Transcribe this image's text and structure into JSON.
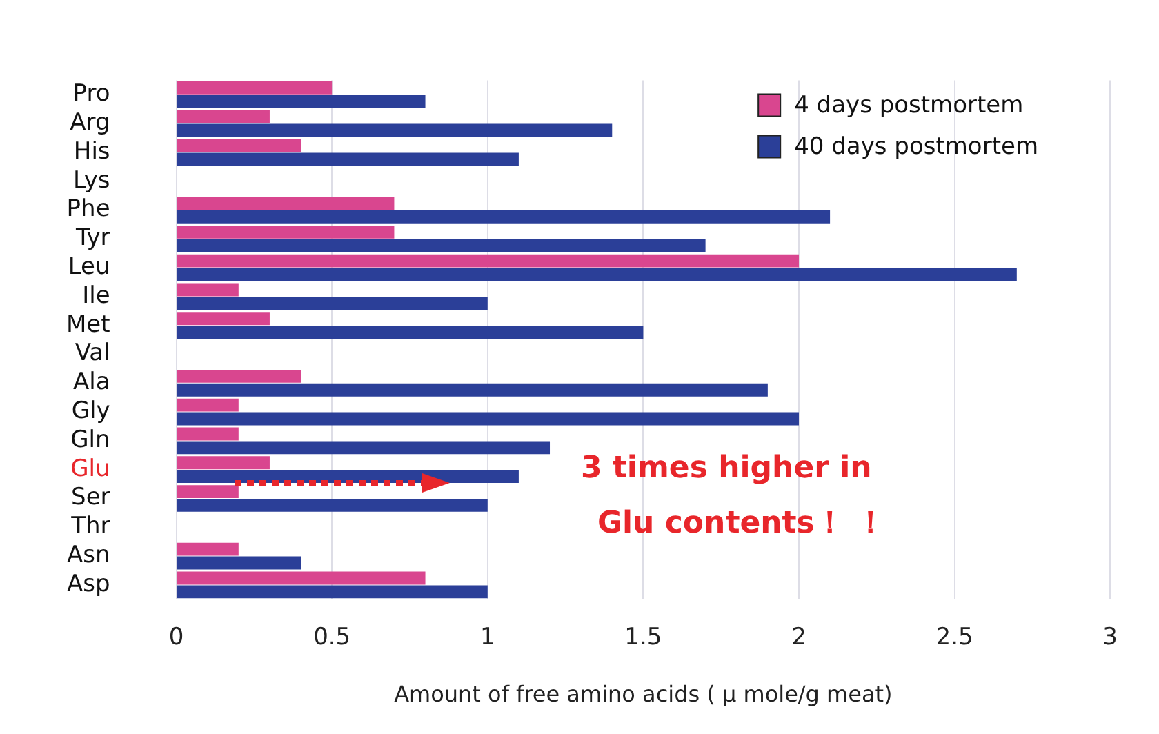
{
  "chart_data": {
    "type": "bar",
    "orientation": "horizontal",
    "xlabel": "Amount of free amino acids ( μ mole/g meat)",
    "categories": [
      "Pro",
      "Arg",
      "His",
      "Lys",
      "Phe",
      "Tyr",
      "Leu",
      "Ile",
      "Met",
      "Val",
      "Ala",
      "Gly",
      "Gln",
      "Glu",
      "Ser",
      "Thr",
      "Asn",
      "Asp"
    ],
    "series": [
      {
        "name": "4 days postmortem",
        "color": "#d9468f",
        "values": [
          0.5,
          0.3,
          0.4,
          null,
          0.7,
          0.7,
          2.0,
          0.2,
          0.3,
          null,
          0.4,
          0.2,
          0.2,
          0.3,
          0.2,
          null,
          0.2,
          0.8
        ]
      },
      {
        "name": "40 days postmortem",
        "color": "#2b3f98",
        "values": [
          0.8,
          1.4,
          1.1,
          null,
          2.1,
          1.7,
          2.7,
          1.0,
          1.5,
          null,
          1.9,
          2.0,
          1.2,
          1.1,
          1.0,
          null,
          0.4,
          1.0
        ]
      }
    ],
    "xlim": [
      0,
      3
    ],
    "xticks": [
      0,
      0.5,
      1,
      1.5,
      2,
      2.5,
      3
    ],
    "grid": "x",
    "legend": "top right",
    "annotations": [
      {
        "text": "3 times higher in\nGlu contents！ ！",
        "x": 1.1,
        "y": "Glu"
      }
    ]
  }
}
